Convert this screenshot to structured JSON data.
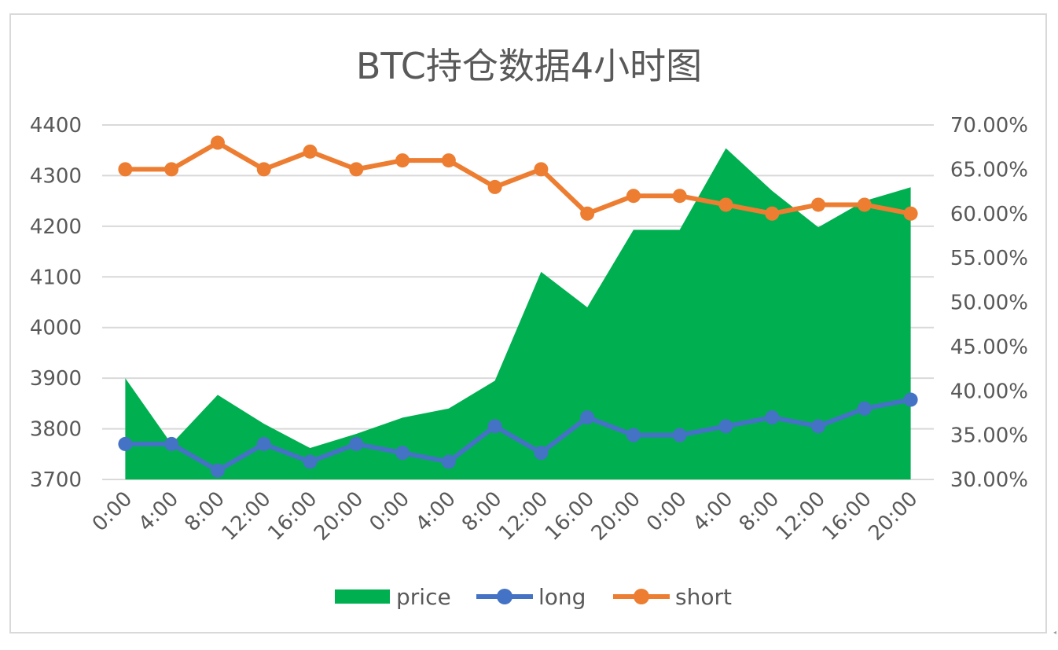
{
  "chart_data": {
    "type": "area",
    "title": "BTC持仓数据4小时图",
    "categories": [
      "0:00",
      "4:00",
      "8:00",
      "12:00",
      "16:00",
      "20:00",
      "0:00",
      "4:00",
      "8:00",
      "12:00",
      "16:00",
      "20:00",
      "0:00",
      "4:00",
      "8:00",
      "12:00",
      "16:00",
      "20:00"
    ],
    "series": [
      {
        "name": "price",
        "type": "area",
        "axis": "left",
        "color": "#00b050",
        "values": [
          3900,
          3770,
          3867,
          3810,
          3762,
          3790,
          3822,
          3840,
          3895,
          4110,
          4040,
          4193,
          4193,
          4354,
          4270,
          4198,
          4250,
          4277
        ]
      },
      {
        "name": "long",
        "type": "line",
        "axis": "right",
        "color": "#4472c4",
        "values": [
          0.34,
          0.34,
          0.31,
          0.34,
          0.32,
          0.34,
          0.33,
          0.32,
          0.36,
          0.33,
          0.37,
          0.35,
          0.35,
          0.36,
          0.37,
          0.36,
          0.38,
          0.39
        ]
      },
      {
        "name": "short",
        "type": "line",
        "axis": "right",
        "color": "#ed7d31",
        "values": [
          0.65,
          0.65,
          0.68,
          0.65,
          0.67,
          0.65,
          0.66,
          0.66,
          0.63,
          0.65,
          0.6,
          0.62,
          0.62,
          0.61,
          0.6,
          0.61,
          0.61,
          0.6
        ]
      }
    ],
    "ylim_left": [
      3700,
      4400
    ],
    "yticks_left": [
      "3700",
      "3800",
      "3900",
      "4000",
      "4100",
      "4200",
      "4300",
      "4400"
    ],
    "ylim_right": [
      0.3,
      0.7
    ],
    "yticks_right": [
      "30.00%",
      "35.00%",
      "40.00%",
      "45.00%",
      "50.00%",
      "55.00%",
      "60.00%",
      "65.00%",
      "70.00%"
    ],
    "grid": true,
    "legend": "bottom"
  }
}
